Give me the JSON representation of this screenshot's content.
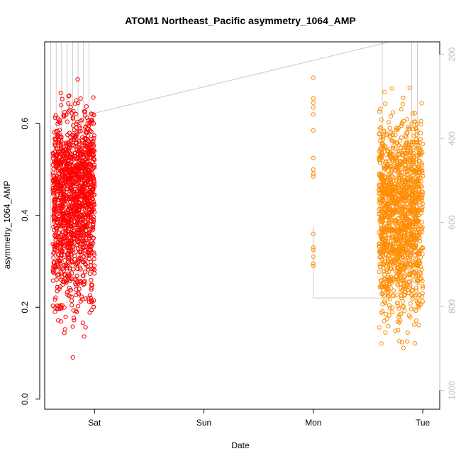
{
  "chart_data": {
    "type": "scatter",
    "title": "ATOM1 Northeast_Pacific asymmetry_1064_AMP",
    "xlabel": "Date",
    "ylabel": "asymmetry_1064_AMP",
    "x_unit": "days from first tick (Sat = 0)",
    "x_ticks": [
      {
        "label": "Sat",
        "value": 0
      },
      {
        "label": "Sun",
        "value": 1
      },
      {
        "label": "Mon",
        "value": 2
      },
      {
        "label": "Tue",
        "value": 3
      }
    ],
    "xlim": [
      -0.455,
      3.155
    ],
    "y_ticks": [
      0.0,
      0.2,
      0.4,
      0.6
    ],
    "ylim": [
      -0.022,
      0.778
    ],
    "y2_ticks": [
      200,
      400,
      600,
      800,
      1000
    ],
    "y2lim": [
      1045,
      170
    ],
    "grid": false,
    "legend": "none",
    "series": [
      {
        "color": "#ff0000",
        "marker": "open-circle",
        "x_range": [
          -0.38,
          0.0
        ],
        "y_range": [
          0.045,
          0.735
        ],
        "count": 1400,
        "seed": 11
      },
      {
        "color": "#ff8c00",
        "marker": "open-circle",
        "x_range": [
          -0.01,
          0.02
        ],
        "y_values": [
          0.29,
          0.295,
          0.31,
          0.325,
          0.33,
          0.36,
          0.485,
          0.49,
          0.5,
          0.525,
          0.585,
          0.62,
          0.635,
          0.645,
          0.655,
          0.7
        ],
        "x_at": 2.0
      },
      {
        "color": "#ff8c00",
        "marker": "open-circle",
        "x_range": [
          2.6,
          3.0
        ],
        "y_range": [
          0.008,
          0.72
        ],
        "count": 1400,
        "seed": 23
      }
    ],
    "depth_trace": {
      "color": "#bdbdbd",
      "axis": "y2",
      "segments": [
        {
          "x": [
            -0.4,
            -0.4
          ],
          "y": [
            170,
            620
          ]
        },
        {
          "x": [
            -0.35,
            -0.35
          ],
          "y": [
            170,
            760
          ]
        },
        {
          "x": [
            -0.3,
            -0.3
          ],
          "y": [
            170,
            640
          ]
        },
        {
          "x": [
            -0.25,
            -0.25
          ],
          "y": [
            170,
            800
          ]
        },
        {
          "x": [
            -0.2,
            -0.2
          ],
          "y": [
            170,
            700
          ]
        },
        {
          "x": [
            -0.15,
            -0.15
          ],
          "y": [
            170,
            760
          ]
        },
        {
          "x": [
            -0.1,
            -0.1
          ],
          "y": [
            170,
            650
          ]
        },
        {
          "x": [
            -0.05,
            -0.05
          ],
          "y": [
            170,
            720
          ]
        },
        {
          "x": [
            0.0,
            2.7
          ],
          "y": [
            340,
            170
          ]
        },
        {
          "x": [
            2.0,
            2.0
          ],
          "y": [
            610,
            780
          ]
        },
        {
          "x": [
            2.0,
            2.63
          ],
          "y": [
            780,
            780
          ]
        },
        {
          "x": [
            2.63,
            2.63
          ],
          "y": [
            170,
            780
          ]
        },
        {
          "x": [
            2.9,
            2.9
          ],
          "y": [
            170,
            760
          ]
        },
        {
          "x": [
            2.95,
            2.95
          ],
          "y": [
            170,
            760
          ]
        }
      ]
    }
  }
}
